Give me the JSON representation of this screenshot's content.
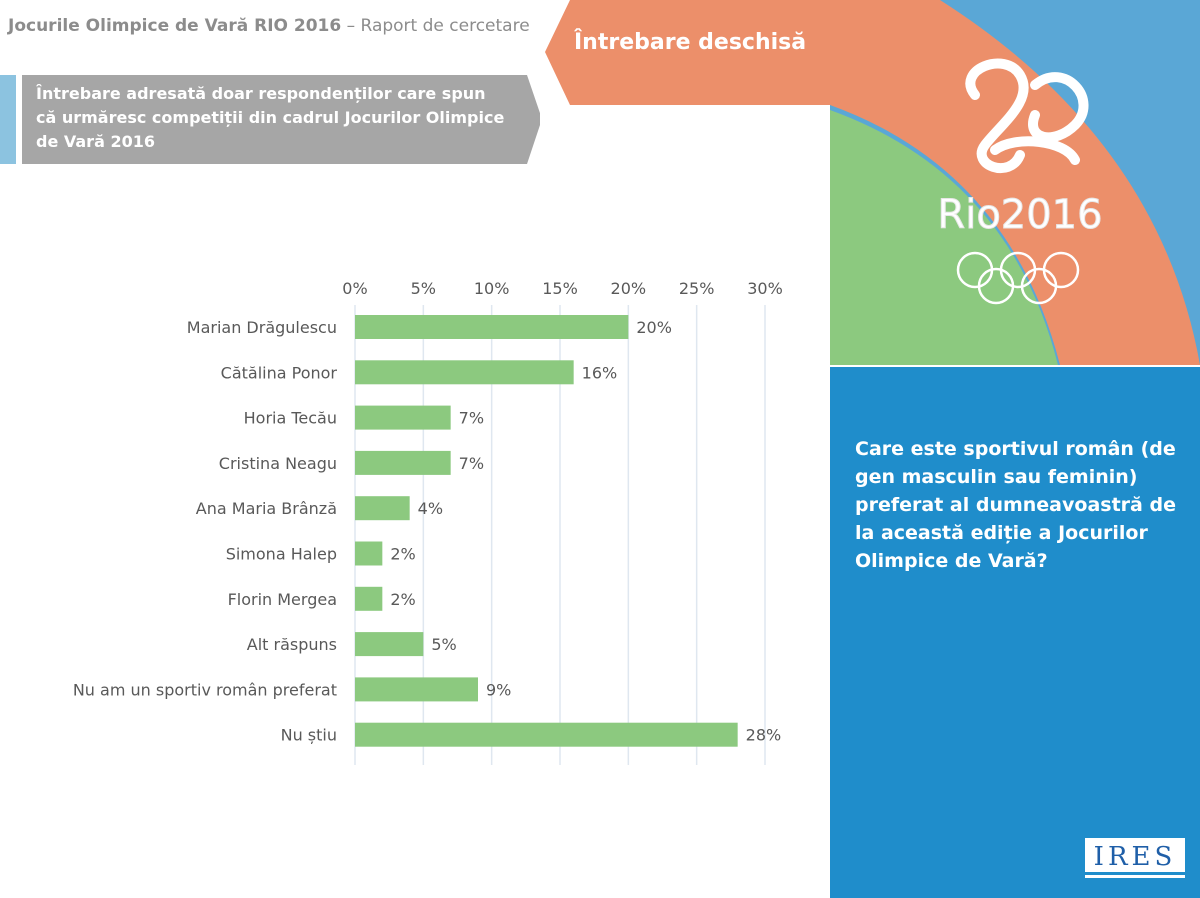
{
  "header": {
    "title_bold": "Jocurile Olimpice de Vară RIO 2016",
    "title_rest": "– Raport de cercetare"
  },
  "subtitle": {
    "text": "Întrebare adresată doar respondenților care spun că urmăresc competiții din cadrul Jocurilor Olimpice de Vară 2016"
  },
  "banner": {
    "label": "Întrebare deschisă"
  },
  "logo": {
    "text": "Rio2016"
  },
  "question": {
    "text": "Care este sportivul român (de gen masculin sau feminin) preferat al dumneavoastră de la această ediție a Jocurilor Olimpice de Vară?"
  },
  "ires": {
    "name": "IRES"
  },
  "colors": {
    "bar": "#8cc97f",
    "grid": "#dfe7f0",
    "orange": "#ec8f6a",
    "green": "#8cc97f",
    "blue": "#1f8dcb",
    "lightblue": "#5aa7d6"
  },
  "chart_data": {
    "type": "bar",
    "orientation": "horizontal",
    "categories": [
      "Marian Drăgulescu",
      "Cătălina Ponor",
      "Horia Tecău",
      "Cristina Neagu",
      "Ana Maria Brânză",
      "Simona Halep",
      "Florin Mergea",
      "Alt răspuns",
      "Nu am un sportiv român preferat",
      "Nu știu"
    ],
    "values": [
      20,
      16,
      7,
      7,
      4,
      2,
      2,
      5,
      9,
      28
    ],
    "value_labels": [
      "20%",
      "16%",
      "7%",
      "7%",
      "4%",
      "2%",
      "2%",
      "5%",
      "9%",
      "28%"
    ],
    "ticks": [
      "0%",
      "5%",
      "10%",
      "15%",
      "20%",
      "25%",
      "30%"
    ],
    "tick_values": [
      0,
      5,
      10,
      15,
      20,
      25,
      30
    ],
    "xlim": [
      0,
      30
    ],
    "axis_position": "top",
    "grid": true,
    "title": "",
    "xlabel": "",
    "ylabel": ""
  }
}
